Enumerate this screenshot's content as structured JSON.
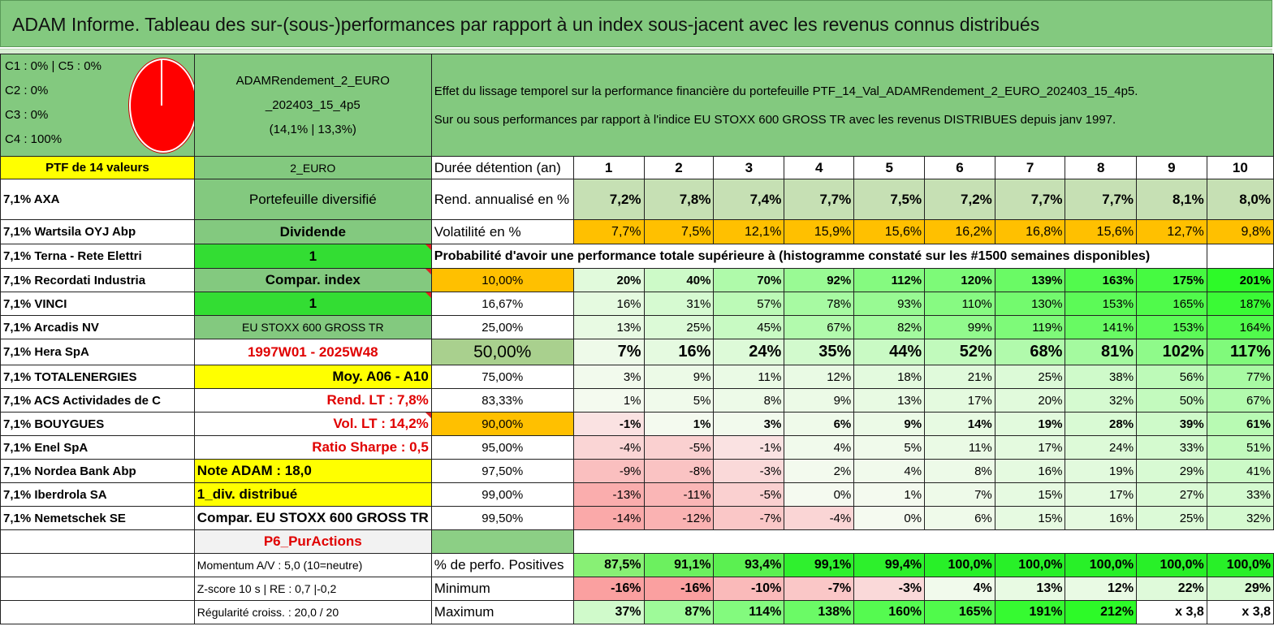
{
  "title": "ADAM Informe. Tableau des sur-(sous-)performances par rapport à un index sous-jacent avec les revenus connus distribués",
  "legend": [
    "C1 : 0% | C5 : 0%",
    "C2 : 0%",
    "C3 : 0%",
    "C4 : 100%"
  ],
  "portfolio_name_lines": [
    "ADAMRendement_2_EURO",
    "_202403_15_4p5",
    "(14,1% | 13,3%)"
  ],
  "description_lines": [
    "Effet du lissage temporel sur la performance financière du portefeuille PTF_14_Val_ADAMRendement_2_EURO_202403_15_4p5.",
    "Sur ou sous performances par rapport à l'indice EU STOXX 600 GROSS TR avec les revenus DISTRIBUES depuis janv 1997."
  ],
  "ptf_label": "PTF de 14 valeurs",
  "holdings": [
    "7,1% AXA",
    "7,1% Wartsila OYJ Abp",
    "7,1% Terna - Rete Elettri",
    "7,1% Recordati Industria",
    "7,1% VINCI",
    "7,1% Arcadis NV",
    "7,1% Hera SpA",
    "7,1% TOTALENERGIES",
    "7,1% ACS Actividades de C",
    "7,1% BOUYGUES",
    "7,1% Enel SpA",
    "7,1% Nordea Bank Abp",
    "7,1% Iberdrola SA",
    "7,1% Nemetschek SE"
  ],
  "info_col": [
    "2_EURO",
    "Portefeuille diversifié",
    "Dividende",
    "1",
    "Compar. index",
    "1",
    "EU STOXX 600 GROSS TR",
    "1997W01 - 2025W48",
    "Moy. A06 - A10",
    "Rend. LT : 7,8%",
    "Vol. LT : 14,2%",
    "Ratio Sharpe : 0,5",
    "Note ADAM : 18,0",
    "1_div. distribué",
    "Compar. EU STOXX 600 GROSS TR",
    "P6_PurActions"
  ],
  "header_row": {
    "label": "Durée détention (an)",
    "years": [
      "1",
      "2",
      "3",
      "4",
      "5",
      "6",
      "7",
      "8",
      "9",
      "10"
    ]
  },
  "rend_row": {
    "label": "Rend. annualisé en %",
    "values": [
      "7,2%",
      "7,8%",
      "7,4%",
      "7,7%",
      "7,5%",
      "7,2%",
      "7,7%",
      "7,7%",
      "8,1%",
      "8,0%"
    ]
  },
  "vol_row": {
    "label": "Volatilité en %",
    "values": [
      "7,7%",
      "7,5%",
      "12,1%",
      "15,9%",
      "15,6%",
      "16,2%",
      "16,8%",
      "15,6%",
      "12,7%",
      "9,8%"
    ]
  },
  "proba_heading": "Probabilité d'avoir une performance totale supérieure à (histogramme constaté sur les #1500 semaines disponibles)",
  "proba_rows": [
    {
      "p": "10,00%",
      "v": [
        "20%",
        "40%",
        "70%",
        "92%",
        "112%",
        "120%",
        "139%",
        "163%",
        "175%",
        "201%"
      ]
    },
    {
      "p": "16,67%",
      "v": [
        "16%",
        "31%",
        "57%",
        "78%",
        "93%",
        "110%",
        "130%",
        "153%",
        "165%",
        "187%"
      ]
    },
    {
      "p": "25,00%",
      "v": [
        "13%",
        "25%",
        "45%",
        "67%",
        "82%",
        "99%",
        "119%",
        "141%",
        "153%",
        "164%"
      ]
    },
    {
      "p": "50,00%",
      "v": [
        "7%",
        "16%",
        "24%",
        "35%",
        "44%",
        "52%",
        "68%",
        "81%",
        "102%",
        "117%"
      ]
    },
    {
      "p": "75,00%",
      "v": [
        "3%",
        "9%",
        "11%",
        "12%",
        "18%",
        "21%",
        "25%",
        "38%",
        "56%",
        "77%"
      ]
    },
    {
      "p": "83,33%",
      "v": [
        "1%",
        "5%",
        "8%",
        "9%",
        "13%",
        "17%",
        "20%",
        "32%",
        "50%",
        "67%"
      ]
    },
    {
      "p": "90,00%",
      "v": [
        "-1%",
        "1%",
        "3%",
        "6%",
        "9%",
        "14%",
        "19%",
        "28%",
        "39%",
        "61%"
      ]
    },
    {
      "p": "95,00%",
      "v": [
        "-4%",
        "-5%",
        "-1%",
        "4%",
        "5%",
        "11%",
        "17%",
        "24%",
        "33%",
        "51%"
      ]
    },
    {
      "p": "97,50%",
      "v": [
        "-9%",
        "-8%",
        "-3%",
        "2%",
        "4%",
        "8%",
        "16%",
        "19%",
        "29%",
        "41%"
      ]
    },
    {
      "p": "99,00%",
      "v": [
        "-13%",
        "-11%",
        "-5%",
        "0%",
        "1%",
        "7%",
        "15%",
        "17%",
        "27%",
        "33%"
      ]
    },
    {
      "p": "99,50%",
      "v": [
        "-14%",
        "-12%",
        "-7%",
        "-4%",
        "0%",
        "6%",
        "15%",
        "16%",
        "25%",
        "32%"
      ]
    }
  ],
  "stats_rows": [
    {
      "info": "Momentum A/V : 5,0 (10=neutre)",
      "label": "% de perfo. Positives",
      "v": [
        "87,5%",
        "91,1%",
        "93,4%",
        "99,1%",
        "99,4%",
        "100,0%",
        "100,0%",
        "100,0%",
        "100,0%",
        "100,0%"
      ]
    },
    {
      "info": "Z-score 10 s | RE : 0,7 |-0,2",
      "label": "Minimum",
      "v": [
        "-16%",
        "-16%",
        "-10%",
        "-7%",
        "-3%",
        "4%",
        "13%",
        "12%",
        "22%",
        "29%"
      ]
    },
    {
      "info": "Régularité croiss. : 20,0 / 20",
      "label": "Maximum",
      "v": [
        "37%",
        "87%",
        "114%",
        "138%",
        "160%",
        "165%",
        "191%",
        "212%",
        "x 3,8",
        "x 3,8"
      ]
    }
  ],
  "colors": {
    "green": "#83c97f",
    "yellow": "#ffff00",
    "lime": "#33dd33",
    "orange": "#ffc000",
    "red": "#ff0000"
  }
}
